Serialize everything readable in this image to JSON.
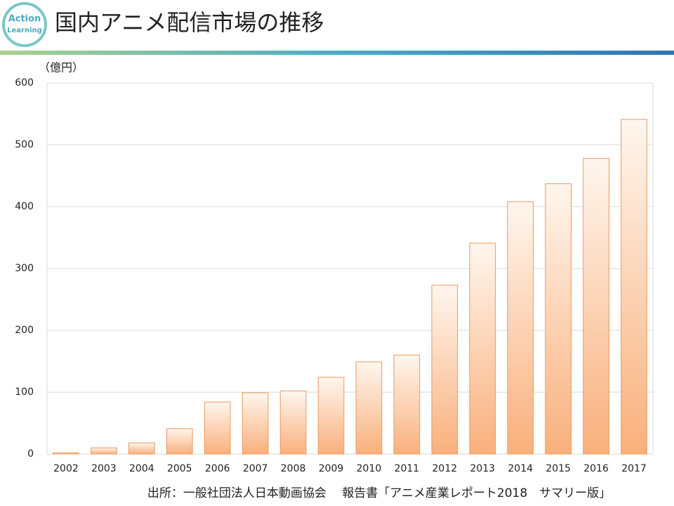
{
  "logo": [
    "Action",
    "Learning"
  ],
  "chart_data": {
    "type": "bar",
    "title": "国内アニメ配信市場の推移",
    "y_label": "（億円）",
    "categories": [
      "2002",
      "2003",
      "2004",
      "2005",
      "2006",
      "2007",
      "2008",
      "2009",
      "2010",
      "2011",
      "2012",
      "2013",
      "2014",
      "2015",
      "2016",
      "2017"
    ],
    "values": [
      2,
      10,
      18,
      41,
      84,
      99,
      102,
      124,
      149,
      160,
      273,
      341,
      408,
      437,
      478,
      541
    ],
    "color": "#f9b07c",
    "ylim": [
      0,
      600
    ],
    "yticks": [
      0,
      100,
      200,
      300,
      400,
      500,
      600
    ],
    "grid": true
  },
  "source": "出所：一般社団法人日本動画協会　 報告書「アニメ産業レポート2018　サマリー版」"
}
